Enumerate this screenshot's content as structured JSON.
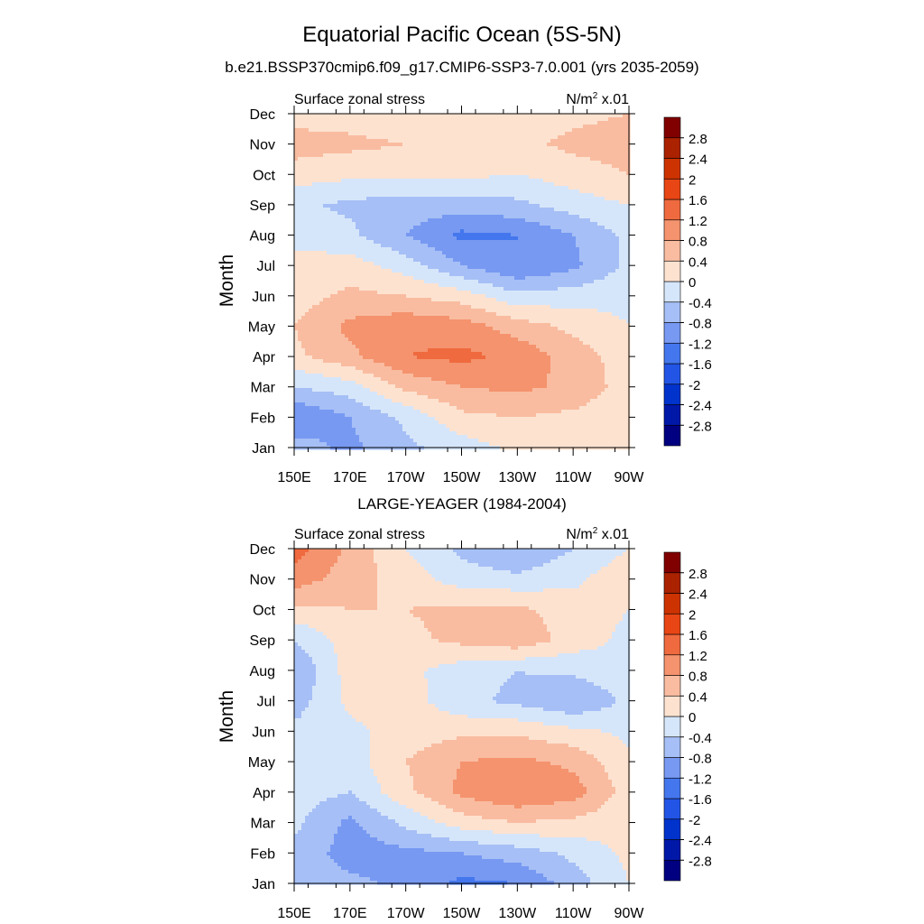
{
  "figure": {
    "title": "Equatorial Pacific Ocean (5S-5N)",
    "subtitle": "b.e21.BSSP370cmip6.f09_g17.CMIP6-SSP3-7.0.001 (yrs 2035-2059)",
    "panel2_title": "LARGE-YEAGER (1984-2004)"
  },
  "colors": {
    "palette": [
      "#000080",
      "#0018a8",
      "#0033cc",
      "#2255e6",
      "#4477ee",
      "#7799f2",
      "#a6bff6",
      "#d6e6fa",
      "#fde2d0",
      "#f9bca0",
      "#f4936e",
      "#ef6a3e",
      "#e84615",
      "#cc3300",
      "#aa2200",
      "#800000"
    ],
    "levels": [
      -2.8,
      -2.4,
      -2,
      -1.6,
      -1.2,
      -0.8,
      -0.4,
      0,
      0.4,
      0.8,
      1.2,
      1.6,
      2,
      2.4,
      2.8
    ]
  },
  "chart_data": [
    {
      "type": "heatmap",
      "title": "b.e21.BSSP370cmip6.f09_g17.CMIP6-SSP3-7.0.001 (yrs 2035-2059)",
      "left_label": "Surface zonal stress",
      "units_label_main": "N/m",
      "units_label_sup": "2",
      "units_label_tail": " x.01",
      "ylabel": "Month",
      "x": [
        "150E",
        "170E",
        "170W",
        "150W",
        "130W",
        "110W",
        "90W"
      ],
      "y": [
        "Jan",
        "Feb",
        "Mar",
        "Apr",
        "May",
        "Jun",
        "Jul",
        "Aug",
        "Sep",
        "Oct",
        "Nov",
        "Dec"
      ],
      "colorbar_ticks": [
        "-2.8",
        "-2.4",
        "-2",
        "-1.6",
        "-1.2",
        "-0.8",
        "-0.4",
        "0",
        "0.4",
        "0.8",
        "1.2",
        "1.6",
        "2",
        "2.4",
        "2.8"
      ],
      "values": [
        [
          -0.6,
          -0.9,
          -0.5,
          -0.2,
          0.1,
          0.1,
          0.0
        ],
        [
          -1.2,
          -0.8,
          -0.3,
          0.3,
          0.4,
          0.3,
          0.1
        ],
        [
          -0.4,
          -0.2,
          0.5,
          0.8,
          0.9,
          0.7,
          0.2
        ],
        [
          0.3,
          0.7,
          1.2,
          1.3,
          1.1,
          0.6,
          0.2
        ],
        [
          0.4,
          0.9,
          1.1,
          1.0,
          0.6,
          0.3,
          0.0
        ],
        [
          0.2,
          0.5,
          0.4,
          0.2,
          -0.3,
          -0.2,
          -0.1
        ],
        [
          0.1,
          0.2,
          -0.2,
          -0.8,
          -1.2,
          -0.9,
          -0.3
        ],
        [
          -0.1,
          -0.3,
          -0.8,
          -1.3,
          -1.2,
          -0.8,
          -0.3
        ],
        [
          -0.3,
          -0.5,
          -0.6,
          -0.6,
          -0.5,
          -0.2,
          0.0
        ],
        [
          0.2,
          0.1,
          0.1,
          0.1,
          0.0,
          0.2,
          0.4
        ],
        [
          0.6,
          0.5,
          0.4,
          0.4,
          0.3,
          0.5,
          0.6
        ],
        [
          0.2,
          0.2,
          0.1,
          0.1,
          0.1,
          0.3,
          0.4
        ]
      ]
    },
    {
      "type": "heatmap",
      "title": "LARGE-YEAGER (1984-2004)",
      "left_label": "Surface zonal stress",
      "units_label_main": "N/m",
      "units_label_sup": "2",
      "units_label_tail": " x.01",
      "ylabel": "Month",
      "x": [
        "150E",
        "170E",
        "170W",
        "150W",
        "130W",
        "110W",
        "90W"
      ],
      "y": [
        "Jan",
        "Feb",
        "Mar",
        "Apr",
        "May",
        "Jun",
        "Jul",
        "Aug",
        "Sep",
        "Oct",
        "Nov",
        "Dec"
      ],
      "colorbar_ticks": [
        "-2.8",
        "-2.4",
        "-2",
        "-1.6",
        "-1.2",
        "-0.8",
        "-0.4",
        "0",
        "0.4",
        "0.8",
        "1.2",
        "1.6",
        "2",
        "2.4",
        "2.8"
      ],
      "values": [
        [
          -0.5,
          -0.7,
          -0.9,
          -1.3,
          -1.2,
          -0.6,
          0.0
        ],
        [
          -0.5,
          -1.0,
          -0.9,
          -0.8,
          -0.6,
          -0.3,
          0.1
        ],
        [
          -0.3,
          -0.9,
          -0.3,
          0.2,
          0.4,
          0.3,
          0.1
        ],
        [
          -0.2,
          -0.4,
          0.3,
          0.9,
          1.2,
          1.0,
          0.2
        ],
        [
          -0.2,
          -0.2,
          0.4,
          0.8,
          0.9,
          0.7,
          0.1
        ],
        [
          -0.3,
          -0.1,
          0.2,
          0.3,
          0.3,
          0.1,
          -0.1
        ],
        [
          -0.6,
          0.1,
          0.2,
          -0.3,
          -0.5,
          -0.8,
          -0.3
        ],
        [
          -0.8,
          0.2,
          0.1,
          -0.2,
          -0.4,
          -0.3,
          -0.1
        ],
        [
          -0.4,
          0.2,
          0.3,
          0.5,
          0.7,
          0.2,
          -0.1
        ],
        [
          0.3,
          0.4,
          0.4,
          0.5,
          0.5,
          0.2,
          0.0
        ],
        [
          1.0,
          0.6,
          0.2,
          -0.2,
          -0.3,
          -0.1,
          0.3
        ],
        [
          1.4,
          0.7,
          0.0,
          -0.5,
          -0.8,
          -0.4,
          0.0
        ]
      ]
    }
  ]
}
